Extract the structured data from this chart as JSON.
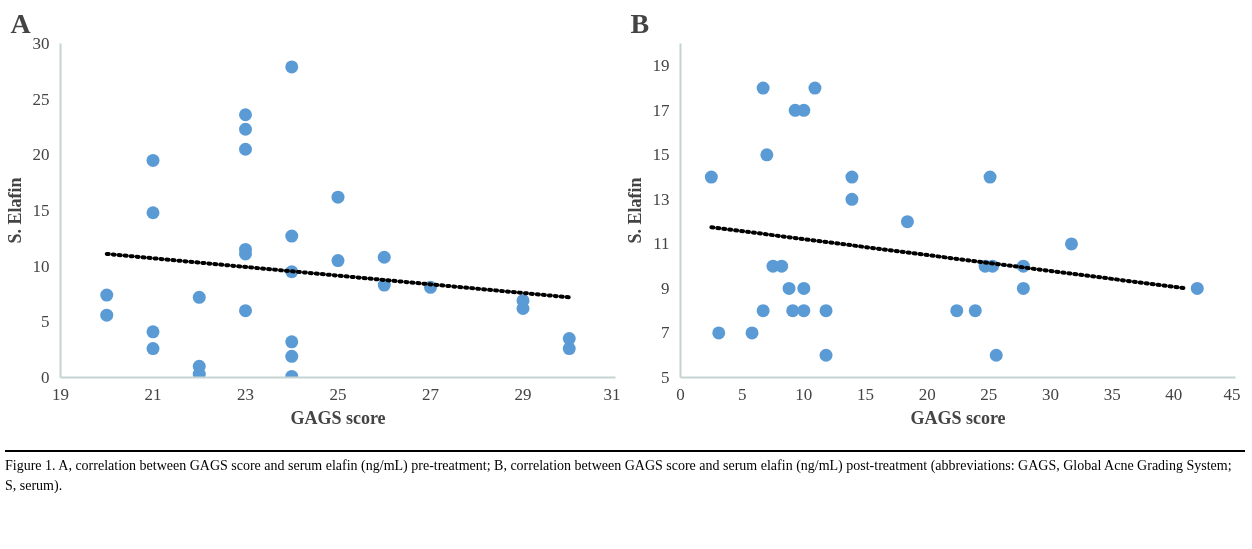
{
  "chart_data": [
    {
      "type": "scatter",
      "title": "A",
      "xlabel": "GAGS score",
      "ylabel": "S. Elafin",
      "xlim": [
        19,
        31
      ],
      "xticks": [
        19,
        21,
        23,
        25,
        27,
        29,
        31
      ],
      "ylim": [
        0,
        30
      ],
      "yticks": [
        0,
        5,
        10,
        15,
        20,
        25,
        30
      ],
      "grid": false,
      "series": [
        {
          "marker": "circle",
          "color": "#5b9bd5",
          "x": [
            20,
            20,
            21,
            21,
            21,
            21,
            22,
            22,
            22,
            23,
            23,
            23,
            23,
            23,
            23,
            24,
            24,
            24,
            24,
            24,
            24,
            25,
            25,
            26,
            26,
            27,
            29,
            29,
            30,
            30
          ],
          "values": [
            7.4,
            5.6,
            19.5,
            14.8,
            4.1,
            2.6,
            7.2,
            1.0,
            0.3,
            23.6,
            22.3,
            20.5,
            11.5,
            11.1,
            6.0,
            27.9,
            12.7,
            9.5,
            3.2,
            1.9,
            0.1,
            16.2,
            10.5,
            10.8,
            8.3,
            8.1,
            6.9,
            6.2,
            3.5,
            2.6
          ]
        },
        {
          "type": "line",
          "line_style": "dotted",
          "color": "#000000",
          "x": [
            20,
            30
          ],
          "values": [
            11.1,
            7.2
          ]
        }
      ]
    },
    {
      "type": "scatter",
      "title": "B",
      "xlabel": "GAGS score",
      "ylabel": "S. Elafin",
      "xlim": [
        0,
        45
      ],
      "xticks": [
        0,
        5,
        10,
        15,
        20,
        25,
        30,
        35,
        40,
        45
      ],
      "ylim": [
        5,
        20
      ],
      "yticks": [
        5,
        7,
        9,
        11,
        13,
        15,
        17,
        19
      ],
      "grid": false,
      "annotations": [
        "Figure 1. A, correlation between GAGS score and serum elafin (ng/mL) pre-treatment; B, correlation between GAGS score and serum elafin (ng/mL) post-treatment (abbreviations: GAGS, Global Acne Grading System; S, serum)."
      ],
      "series": [
        {
          "marker": "circle",
          "color": "#5b9bd5",
          "x": [
            2.5,
            3.1,
            5.8,
            6.7,
            6.7,
            7.0,
            7.5,
            8.2,
            8.8,
            9.3,
            9.1,
            10.0,
            10.0,
            10.0,
            10.9,
            11.8,
            11.8,
            13.9,
            13.9,
            18.4,
            22.4,
            23.9,
            25.1,
            24.7,
            25.3,
            25.6,
            27.8,
            27.8,
            31.7,
            41.9
          ],
          "values": [
            14,
            7,
            7,
            18,
            8,
            15,
            10,
            10,
            9,
            17,
            8,
            17,
            9,
            8,
            18,
            8,
            6,
            14,
            13,
            12,
            8,
            8,
            14,
            10,
            10,
            6,
            10,
            9,
            11,
            9
          ]
        },
        {
          "type": "line",
          "line_style": "dotted",
          "color": "#000000",
          "x": [
            2.5,
            41
          ],
          "values": [
            11.75,
            9.0
          ]
        }
      ]
    }
  ]
}
